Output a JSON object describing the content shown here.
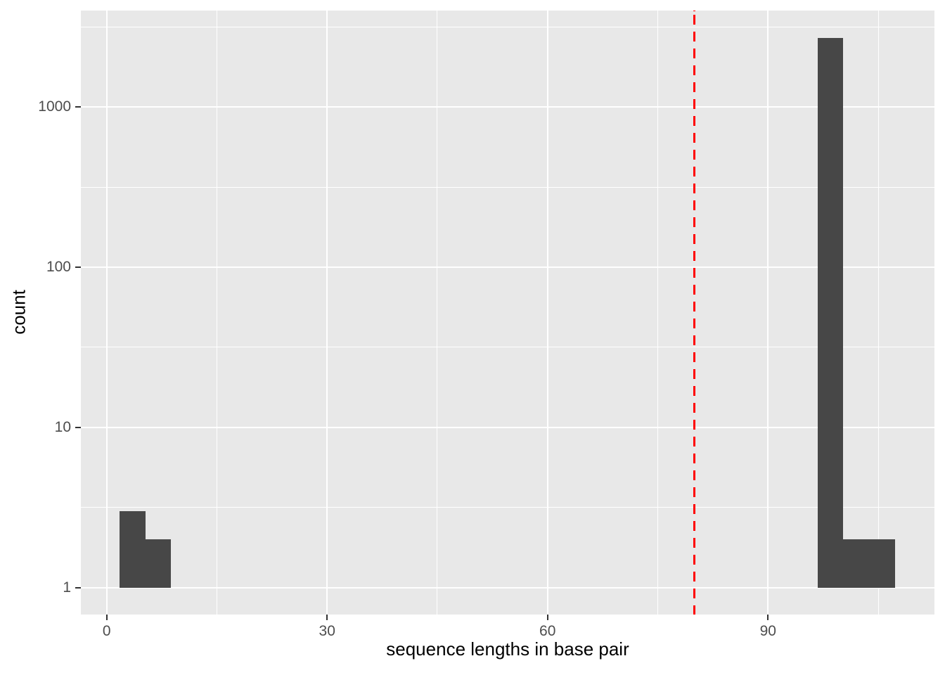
{
  "figure": {
    "background": "#FFFFFF",
    "panel_background": "#E8E8E8",
    "grid_color": "#FFFFFF",
    "bar_color": "#474747",
    "tick_color": "#333333",
    "tick_label_color": "#4D4D4D",
    "title_color": "#000000"
  },
  "chart_data": {
    "type": "bar",
    "subtype": "histogram",
    "title": "",
    "xlabel": "sequence lengths in base pair",
    "ylabel": "count",
    "y_scale": "log10",
    "grid": true,
    "legend_position": "none",
    "x_ticks": [
      0,
      30,
      60,
      90
    ],
    "x_tick_labels": [
      "0",
      "30",
      "60",
      "90"
    ],
    "x_minor_breaks": [
      15,
      45,
      75,
      105
    ],
    "y_ticks": [
      1,
      10,
      100,
      1000
    ],
    "y_tick_labels": [
      "1",
      "10",
      "100",
      "1000"
    ],
    "y_minor_breaks": [
      3.1623,
      31.623,
      316.23,
      3162.3
    ],
    "xlim": [
      -3.51,
      112.65
    ],
    "ylim": [
      0.681,
      3990
    ],
    "bar_baseline": 1,
    "bars": [
      {
        "x0": 1.75,
        "x1": 5.25,
        "count": 3
      },
      {
        "x0": 5.25,
        "x1": 8.75,
        "count": 2
      },
      {
        "x0": 96.75,
        "x1": 100.25,
        "count": 2700
      },
      {
        "x0": 100.25,
        "x1": 107.25,
        "count": 2
      }
    ],
    "vline": {
      "x": 80,
      "color": "#FF0000",
      "style": "dashed",
      "width": 3
    }
  }
}
